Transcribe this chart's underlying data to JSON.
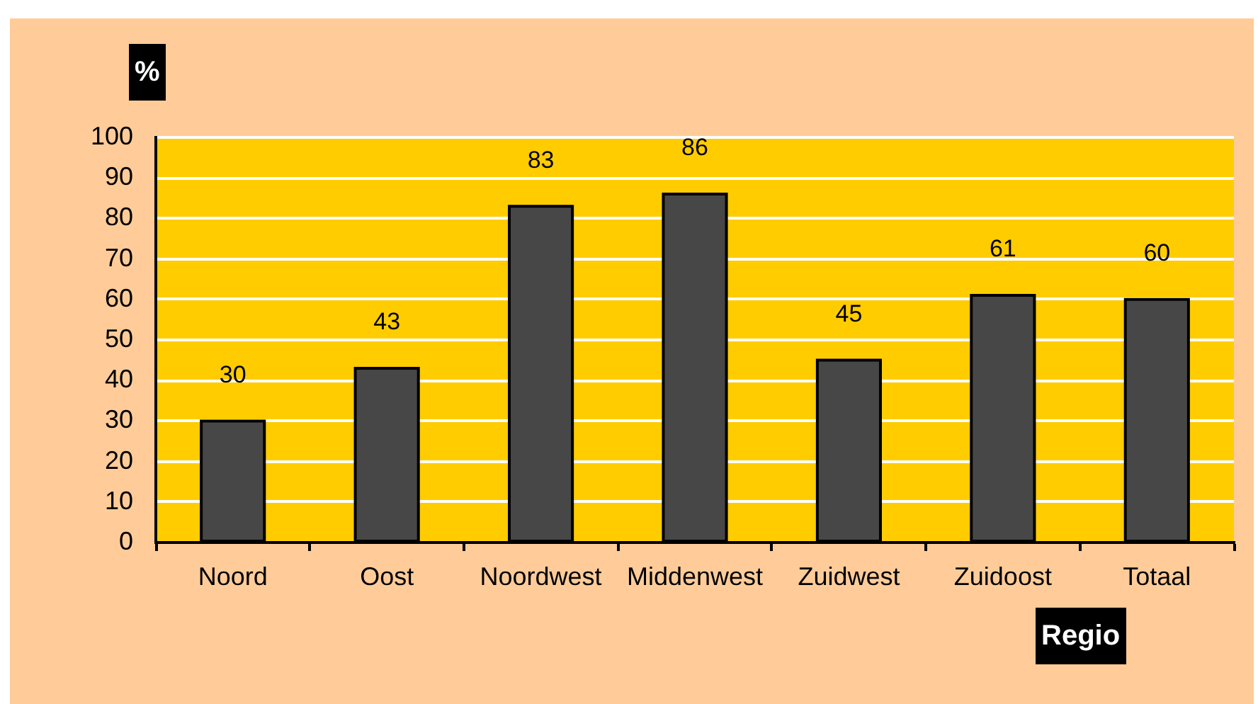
{
  "chart_data": {
    "type": "bar",
    "xlabel": "Regio",
    "ylabel": "%",
    "categories": [
      "Noord",
      "Oost",
      "Noordwest",
      "Middenwest",
      "Zuidwest",
      "Zuidoost",
      "Totaal"
    ],
    "values": [
      30,
      43,
      83,
      86,
      45,
      61,
      60
    ],
    "color": "#474747",
    "ylim": [
      0,
      100
    ],
    "yticks": [
      0,
      10,
      20,
      30,
      40,
      50,
      60,
      70,
      80,
      90,
      100
    ],
    "grid": "y",
    "data_labels": true
  }
}
